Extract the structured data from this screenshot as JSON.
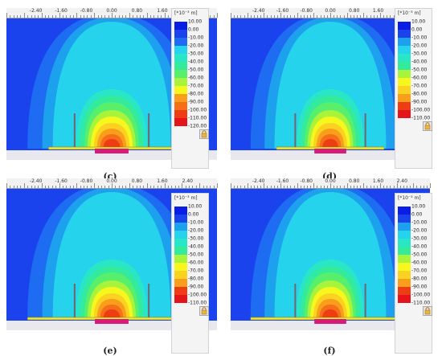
{
  "ruler_labels": [
    "-2.40",
    "-1.60",
    "-0.80",
    "0.00",
    "0.80",
    "1.60",
    "2.40"
  ],
  "legend": {
    "unit": "[*10⁻³ m]",
    "colors": [
      "#0a1de6",
      "#1a43ee",
      "#1e6cf2",
      "#1da0ee",
      "#25d3ec",
      "#29e6c6",
      "#34eb9c",
      "#58ef6c",
      "#a8f33c",
      "#f6f71d",
      "#fbd221",
      "#f99d1c",
      "#f56f18",
      "#ee3c15",
      "#e5141b"
    ]
  },
  "panels": [
    {
      "id": "c",
      "caption": "(c)",
      "legend_values": [
        "10.00",
        "0.00",
        "-10.00",
        "-20.00",
        "-30.00",
        "-40.00",
        "-50.00",
        "-60.00",
        "-70.00",
        "-80.00",
        "-90.00",
        "-100.00",
        "-110.00",
        "-120.00"
      ]
    },
    {
      "id": "d",
      "caption": "(d)",
      "legend_values": [
        "10.00",
        "0.00",
        "-10.00",
        "-20.00",
        "-30.00",
        "-40.00",
        "-50.00",
        "-60.00",
        "-70.00",
        "-80.00",
        "-90.00",
        "-100.00",
        "-110.00"
      ]
    },
    {
      "id": "e",
      "caption": "(e)",
      "legend_values": [
        "10.00",
        "0.00",
        "-10.00",
        "-20.00",
        "-30.00",
        "-40.00",
        "-50.00",
        "-60.00",
        "-70.00",
        "-80.00",
        "-90.00",
        "-100.00",
        "-110.00"
      ]
    },
    {
      "id": "f",
      "caption": "(f)",
      "legend_values": [
        "10.00",
        "0.00",
        "-10.00",
        "-20.00",
        "-30.00",
        "-40.00",
        "-50.00",
        "-60.00",
        "-70.00",
        "-80.00",
        "-90.00",
        "-100.00",
        "-110.00"
      ]
    }
  ],
  "icons": {
    "lock": "lock-icon"
  }
}
